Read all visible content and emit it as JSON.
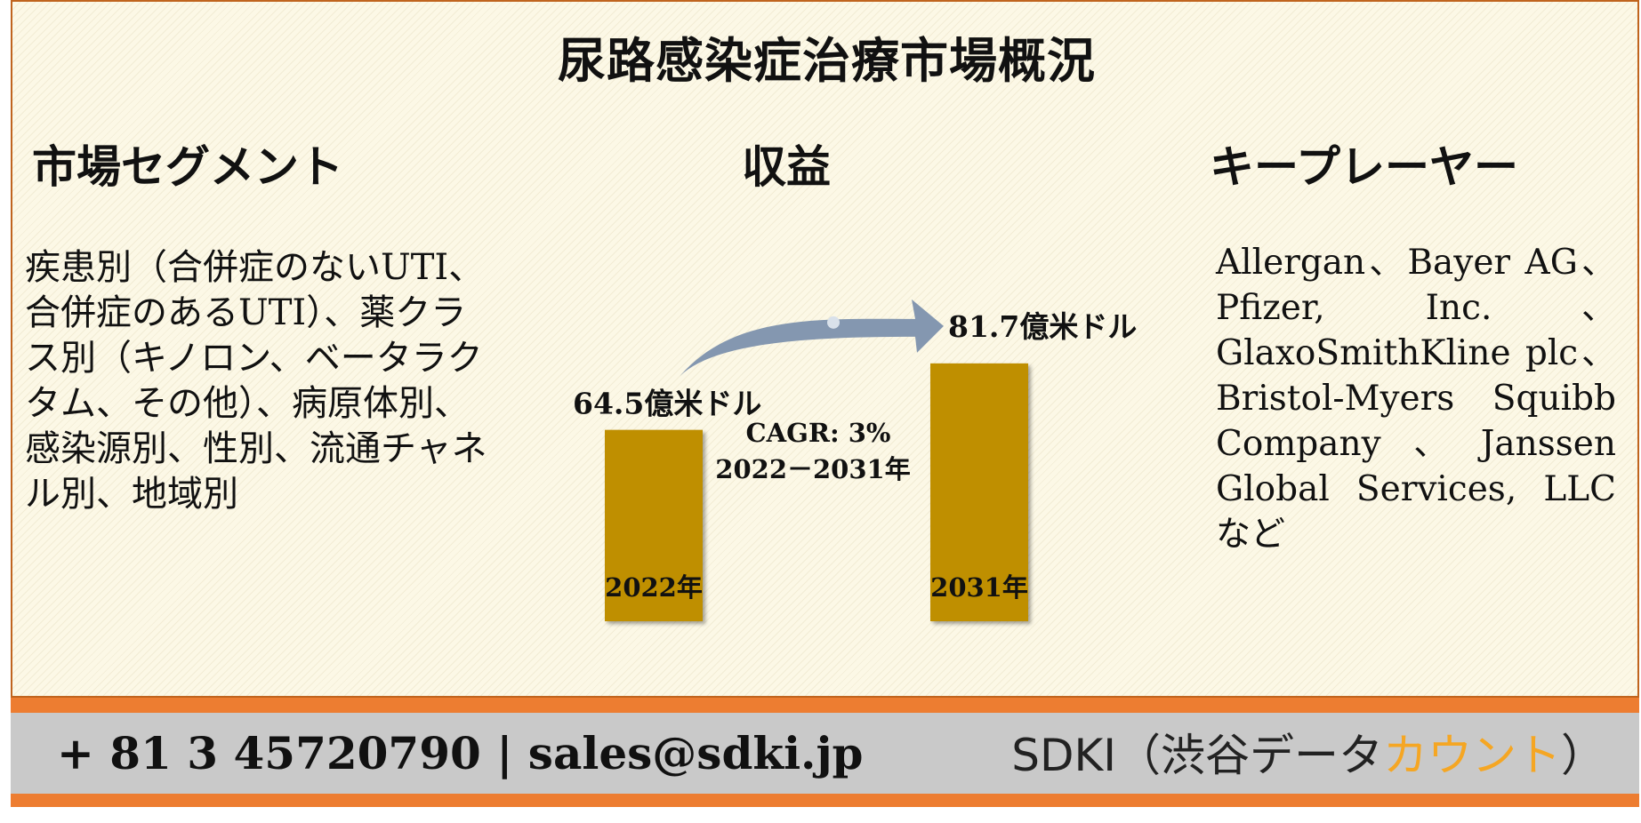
{
  "title": "尿路感染症治療市場概況",
  "columns": {
    "segments_heading": "市場セグメント",
    "revenue_heading": "収益",
    "players_heading": "キープレーヤー"
  },
  "segments_text": "疾患別（合併症のないUTI、合併症のあるUTI）、薬クラス別（キノロン、ベータラクタム、その他）、病原体別、感染源別、性別、流通チャネル別、地域別",
  "players_text": "Allergan、Bayer AG、Pfizer, Inc.、GlaxoSmithKline plc、Bristol-Myers Squibb Company、Janssen Global Services, LLCなど",
  "chart_data": {
    "type": "bar",
    "categories": [
      "2022年",
      "2031年"
    ],
    "values": [
      64.5,
      81.7
    ],
    "value_labels": [
      "64.5億米ドル",
      "81.7億米ドル"
    ],
    "unit": "億米ドル",
    "bar_color": "#bf8f00",
    "annotation_line1": "CAGR: 3%",
    "annotation_line2": "2022－2031年",
    "arrow_color": "#8497b0"
  },
  "footer": {
    "contact": "+ 81 3 45720790 | sales@sdki.jp",
    "brand_prefix": "SDKI（渋谷データ",
    "brand_accent": "カウント",
    "brand_suffix": "）",
    "accent_color": "#f5a623",
    "stripe_color": "#ed7d31",
    "bar_color": "#c9c9c9"
  }
}
